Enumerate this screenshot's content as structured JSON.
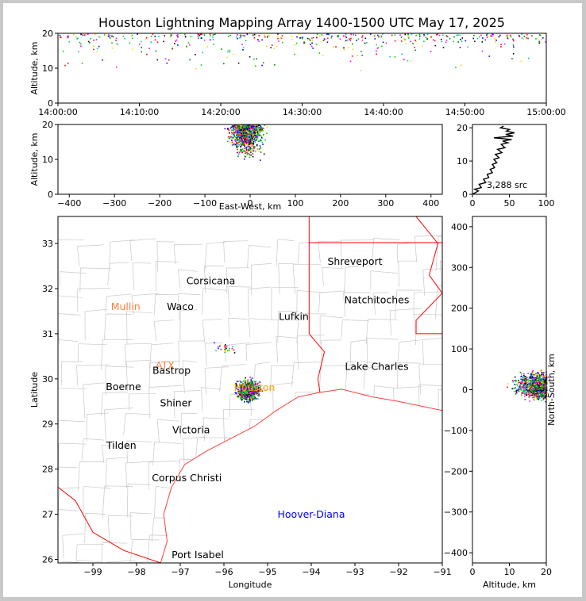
{
  "title": "Houston Lightning Mapping Array 1400-1500 UTC May 17, 2025",
  "colors": {
    "county": "#c8c8c8",
    "state": "#ff0000",
    "coast": "#ff4040"
  },
  "source_count_label": "3,288 src",
  "chart_data": [
    {
      "name": "altitude-time",
      "type": "scatter",
      "xlabel": "",
      "ylabel": "Altitude, km",
      "x_ticks": [
        "14:00:00",
        "14:10:00",
        "14:20:00",
        "14:30:00",
        "14:40:00",
        "14:50:00",
        "15:00:00"
      ],
      "x_range_minutes": [
        0,
        60
      ],
      "y_ticks": [
        0,
        10,
        20
      ],
      "ylim": [
        0,
        20
      ]
    },
    {
      "name": "altitude-east-west",
      "type": "scatter",
      "xlabel": "East-West, km",
      "ylabel": "Altitude, km",
      "x_ticks": [
        -400,
        -300,
        -200,
        -100,
        0,
        100,
        200,
        300,
        400
      ],
      "xlim": [
        -425,
        425
      ],
      "y_ticks": [
        0,
        10,
        20
      ],
      "ylim": [
        0,
        20
      ]
    },
    {
      "name": "altitude-histogram",
      "type": "line",
      "xlabel": "",
      "ylabel": "",
      "x_ticks": [
        0,
        50,
        100
      ],
      "xlim": [
        0,
        100
      ],
      "y_ticks": [
        0,
        10,
        20
      ],
      "ylim": [
        0,
        21
      ],
      "profile": [
        [
          0,
          0
        ],
        [
          8,
          1
        ],
        [
          3,
          1.5
        ],
        [
          12,
          2
        ],
        [
          9,
          3
        ],
        [
          18,
          3.5
        ],
        [
          15,
          4.5
        ],
        [
          22,
          5
        ],
        [
          20,
          6
        ],
        [
          27,
          6.5
        ],
        [
          24,
          7.5
        ],
        [
          30,
          8
        ],
        [
          27,
          9
        ],
        [
          33,
          9.5
        ],
        [
          29,
          10.5
        ],
        [
          36,
          11
        ],
        [
          31,
          12
        ],
        [
          40,
          12.5
        ],
        [
          34,
          13.5
        ],
        [
          44,
          14
        ],
        [
          39,
          15
        ],
        [
          48,
          15.5
        ],
        [
          41,
          16
        ],
        [
          53,
          16.5
        ],
        [
          29,
          17
        ],
        [
          55,
          17.5
        ],
        [
          45,
          18
        ],
        [
          57,
          18.5
        ],
        [
          46,
          19
        ],
        [
          50,
          19.5
        ],
        [
          38,
          20
        ],
        [
          42,
          20.5
        ]
      ]
    },
    {
      "name": "plan-view-map",
      "type": "scatter",
      "xlabel": "Longitude",
      "ylabel": "Latitude",
      "x_ticks": [
        -99,
        -98,
        -97,
        -96,
        -95,
        -94,
        -93,
        -92,
        -91
      ],
      "xlim": [
        -99.8,
        -91
      ],
      "y_ticks": [
        26,
        27,
        28,
        29,
        30,
        31,
        32,
        33
      ],
      "ylim": [
        25.92,
        33.6
      ],
      "cities": [
        {
          "name": "Shreveport",
          "lon": -93.0,
          "lat": 32.6,
          "color": "#000000"
        },
        {
          "name": "Corsicana",
          "lon": -96.3,
          "lat": 32.17,
          "color": "#000000"
        },
        {
          "name": "Natchitoches",
          "lon": -92.5,
          "lat": 31.75,
          "color": "#000000"
        },
        {
          "name": "Mullin",
          "lon": -98.25,
          "lat": 31.6,
          "color": "#ff8040"
        },
        {
          "name": "Waco",
          "lon": -97.0,
          "lat": 31.6,
          "color": "#000000"
        },
        {
          "name": "Lufkin",
          "lon": -94.4,
          "lat": 31.38,
          "color": "#000000"
        },
        {
          "name": "ATX",
          "lon": -97.35,
          "lat": 30.3,
          "color": "#ff8040"
        },
        {
          "name": "Lake Charles",
          "lon": -92.5,
          "lat": 30.27,
          "color": "#000000"
        },
        {
          "name": "Bastrop",
          "lon": -97.2,
          "lat": 30.18,
          "color": "#000000"
        },
        {
          "name": "Houston",
          "lon": -95.3,
          "lat": 29.8,
          "color": "#ffa500"
        },
        {
          "name": "Boerne",
          "lon": -98.3,
          "lat": 29.82,
          "color": "#000000"
        },
        {
          "name": "Shiner",
          "lon": -97.1,
          "lat": 29.46,
          "color": "#000000"
        },
        {
          "name": "Victoria",
          "lon": -96.75,
          "lat": 28.86,
          "color": "#000000"
        },
        {
          "name": "Tilden",
          "lon": -98.35,
          "lat": 28.52,
          "color": "#000000"
        },
        {
          "name": "Corpus Christi",
          "lon": -96.85,
          "lat": 27.8,
          "color": "#000000"
        },
        {
          "name": "Hoover-Diana",
          "lon": -94.0,
          "lat": 26.99,
          "color": "#0000ff"
        },
        {
          "name": "Port Isabel",
          "lon": -96.6,
          "lat": 26.1,
          "color": "#000000"
        }
      ]
    },
    {
      "name": "north-south-altitude",
      "type": "scatter",
      "xlabel": "Altitude, km",
      "ylabel": "North-South, km",
      "x_ticks": [
        0,
        10,
        20
      ],
      "xlim": [
        0,
        20
      ],
      "y_ticks": [
        -400,
        -300,
        -200,
        -100,
        0,
        100,
        200,
        300,
        400
      ],
      "ylim": [
        -425,
        425
      ]
    }
  ]
}
